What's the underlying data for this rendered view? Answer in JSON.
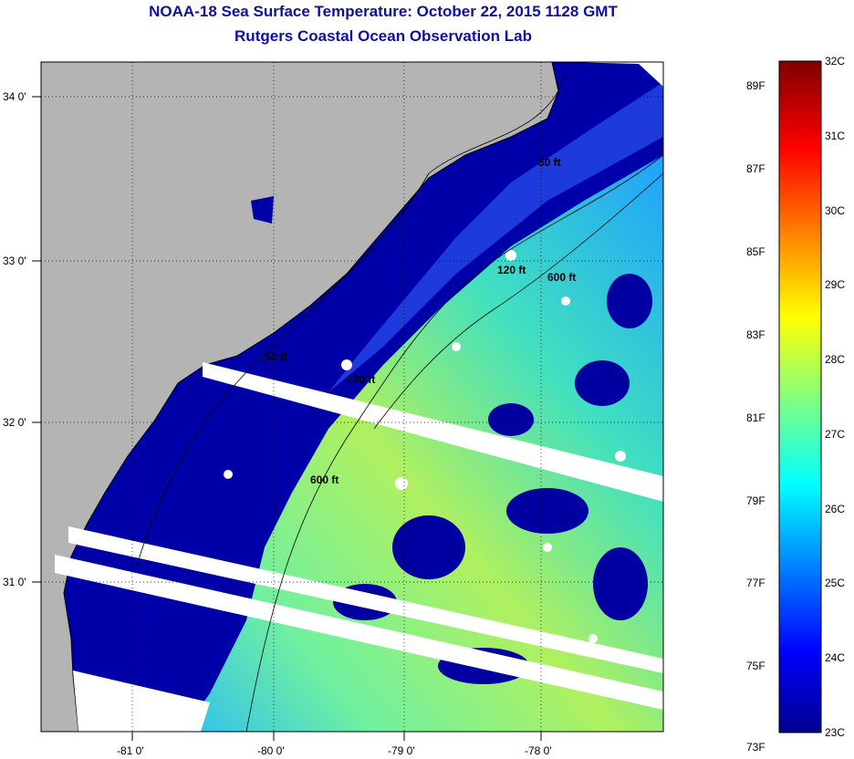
{
  "title": "NOAA-18 Sea Surface Temperature:  October 22, 2015 1128 GMT",
  "subtitle": "Rutgers Coastal Ocean Observation Lab",
  "map": {
    "lat_labels": [
      "34 0'",
      "33 0'",
      "32 0'",
      "31 0'"
    ],
    "lon_labels": [
      "-81 0'",
      "-80 0'",
      "-79 0'",
      "-78 0'"
    ],
    "contour_labels": [
      "50 ft",
      "120 ft",
      "600 ft",
      "50 ft",
      "120 ft",
      "600 ft"
    ],
    "colors": {
      "land": "#b4b4b4",
      "cold": "#00008f",
      "nodata": "#ffffff"
    }
  },
  "colorbar": {
    "fahrenheit_labels": [
      "89F",
      "87F",
      "85F",
      "83F",
      "81F",
      "79F",
      "77F",
      "75F",
      "73F"
    ],
    "celsius_labels": [
      "32C",
      "31C",
      "30C",
      "29C",
      "28C",
      "27C",
      "26C",
      "25C",
      "24C",
      "23C"
    ],
    "range_c": [
      23,
      32
    ]
  }
}
